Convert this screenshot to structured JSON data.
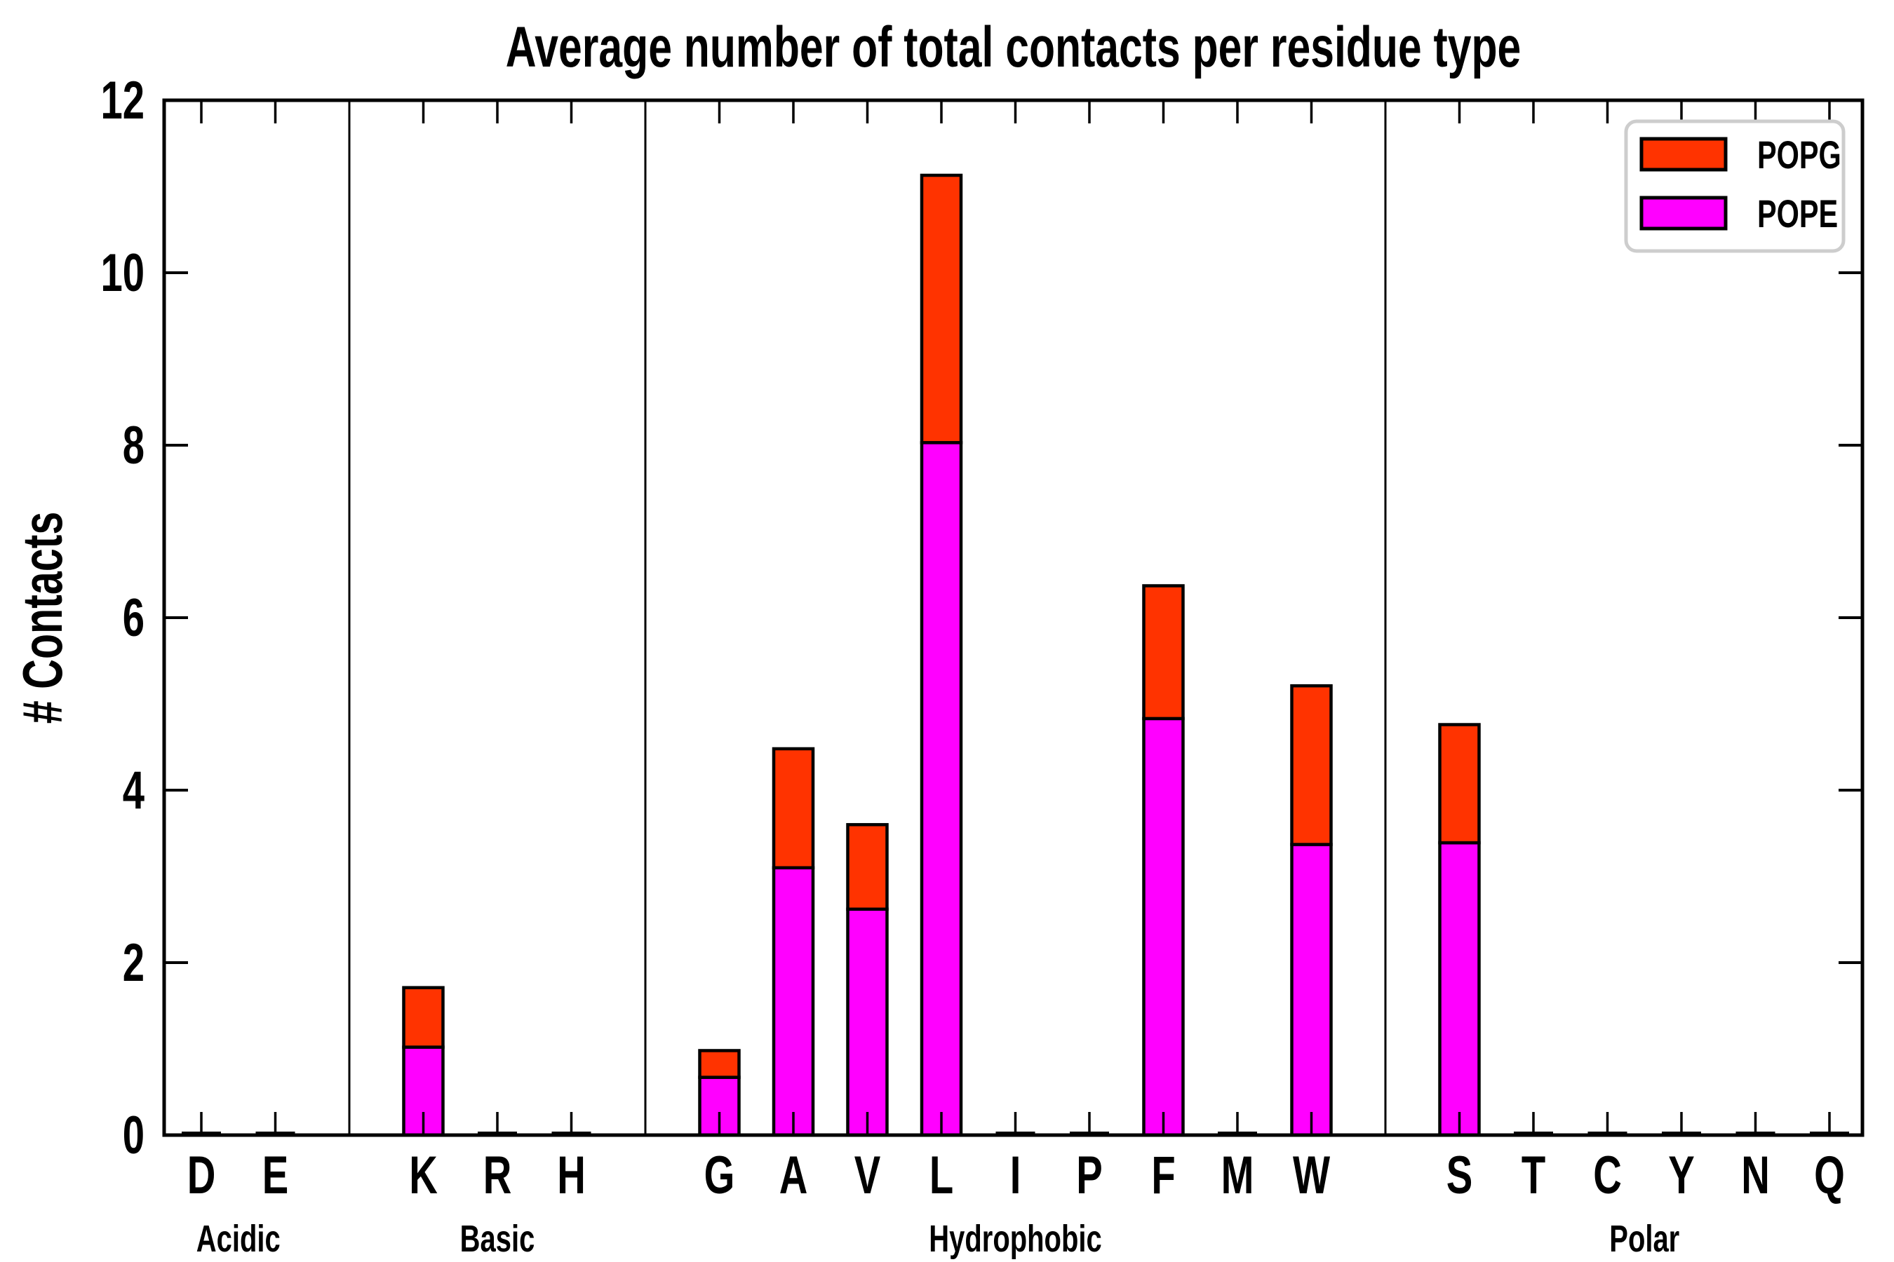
{
  "title": "Average number of total contacts per residue type",
  "ylabel": "# Contacts",
  "legend": {
    "items": [
      {
        "label": "POPG",
        "color": "#ff3300"
      },
      {
        "label": "POPE",
        "color": "#ff00ff"
      }
    ],
    "position": "upper right",
    "border_color": "#cdcdcd"
  },
  "chart_data": {
    "type": "bar",
    "stacked": true,
    "title": "Average number of total contacts per residue type",
    "xlabel": "",
    "ylabel": "# Contacts",
    "ylim": [
      0,
      12
    ],
    "yticks": [
      0,
      2,
      4,
      6,
      8,
      10,
      12
    ],
    "grid": false,
    "legend_position": "upper right",
    "background": "#ffffff",
    "bar_edge_color": "#000000",
    "categories": [
      "D",
      "E",
      "K",
      "R",
      "H",
      "G",
      "A",
      "V",
      "L",
      "I",
      "P",
      "F",
      "M",
      "W",
      "S",
      "T",
      "C",
      "Y",
      "N",
      "Q"
    ],
    "groups": [
      {
        "label": "Acidic",
        "residues": [
          "D",
          "E"
        ]
      },
      {
        "label": "Basic",
        "residues": [
          "K",
          "R",
          "H"
        ]
      },
      {
        "label": "Hydrophobic",
        "residues": [
          "G",
          "A",
          "V",
          "L",
          "I",
          "P",
          "F",
          "M",
          "W"
        ]
      },
      {
        "label": "Polar",
        "residues": [
          "S",
          "T",
          "C",
          "Y",
          "N",
          "Q"
        ]
      }
    ],
    "series": [
      {
        "name": "POPE",
        "color": "#ff00ff",
        "values": [
          0.01,
          0.01,
          1.02,
          0.01,
          0.01,
          0.67,
          3.1,
          2.62,
          8.03,
          0.01,
          0.01,
          4.83,
          0.01,
          3.37,
          3.39,
          0.01,
          0.01,
          0.01,
          0.01,
          0.01
        ]
      },
      {
        "name": "POPG",
        "color": "#ff3300",
        "values": [
          0.01,
          0.01,
          0.69,
          0.01,
          0.01,
          0.31,
          1.38,
          0.98,
          3.1,
          0.01,
          0.01,
          1.54,
          0.01,
          1.84,
          1.37,
          0.01,
          0.01,
          0.01,
          0.01,
          0.01
        ]
      }
    ],
    "totals": [
      0.02,
      0.02,
      1.71,
      0.02,
      0.02,
      0.98,
      4.48,
      3.6,
      11.13,
      0.02,
      0.02,
      6.37,
      0.02,
      5.21,
      4.76,
      0.02,
      0.02,
      0.02,
      0.02,
      0.02
    ]
  }
}
